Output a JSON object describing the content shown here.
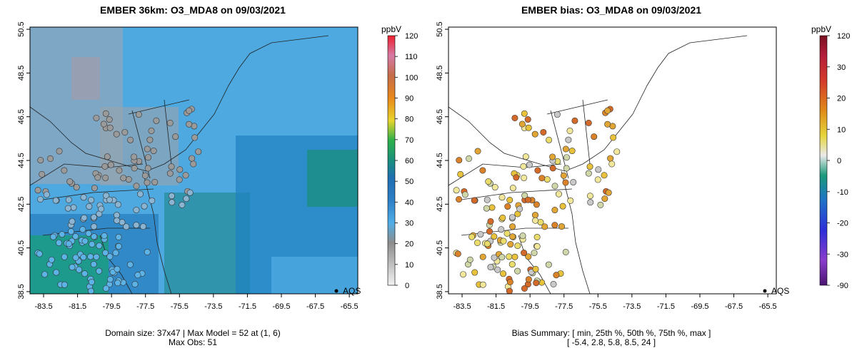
{
  "chart_data": [
    {
      "type": "heatmap",
      "title": "EMBER 36km: O3_MDA8 on 09/03/2021",
      "x_ticks": [
        "-83.5",
        "-81.5",
        "-79.5",
        "-77.5",
        "-75.5",
        "-73.5",
        "-71.5",
        "-69.5",
        "-67.5",
        "-65.5"
      ],
      "y_ticks": [
        "38.5",
        "40.5",
        "42.5",
        "44.5",
        "46.5",
        "48.5",
        "50.5"
      ],
      "xlim": [
        -84.3,
        -65.0
      ],
      "ylim": [
        38.4,
        50.6
      ],
      "colorbar": {
        "unit": "ppbV",
        "ticks": [
          "0",
          "10",
          "20",
          "30",
          "40",
          "50",
          "60",
          "70",
          "80",
          "90",
          "100",
          "110",
          "120"
        ],
        "range": [
          0,
          120
        ]
      },
      "legend": {
        "label": "AQS",
        "position": "bottom-right"
      },
      "footer": [
        "Domain size: 37x47 | Max Model = 52 at (1, 6)",
        "Max Obs: 51"
      ]
    },
    {
      "type": "scatter",
      "title": "EMBER bias: O3_MDA8 on 09/03/2021",
      "x_ticks": [
        "-83.5",
        "-81.5",
        "-79.5",
        "-77.5",
        "-75.5",
        "-73.5",
        "-71.5",
        "-69.5",
        "-67.5",
        "-65.5"
      ],
      "y_ticks": [
        "38.5",
        "40.5",
        "42.5",
        "44.5",
        "46.5",
        "48.5",
        "50.5"
      ],
      "xlim": [
        -84.3,
        -65.0
      ],
      "ylim": [
        38.4,
        50.6
      ],
      "colorbar": {
        "unit": "ppbV",
        "ticks": [
          "120",
          "30",
          "20",
          "10",
          "0",
          "-10",
          "-20",
          "-30",
          "-90"
        ],
        "values": [
          120,
          30,
          20,
          10,
          0,
          -10,
          -20,
          -30,
          -90
        ]
      },
      "legend": {
        "label": "AQS",
        "position": "bottom-right"
      },
      "footer": [
        "Bias Summary: [ min, 25th %, 50th %, 75th %, max ]",
        "[ -5.4,   2.8,   5.8,   8.5,   24 ]"
      ],
      "summary": {
        "min": -5.4,
        "p25": 2.8,
        "p50": 5.8,
        "p75": 8.5,
        "max": 24
      }
    }
  ]
}
